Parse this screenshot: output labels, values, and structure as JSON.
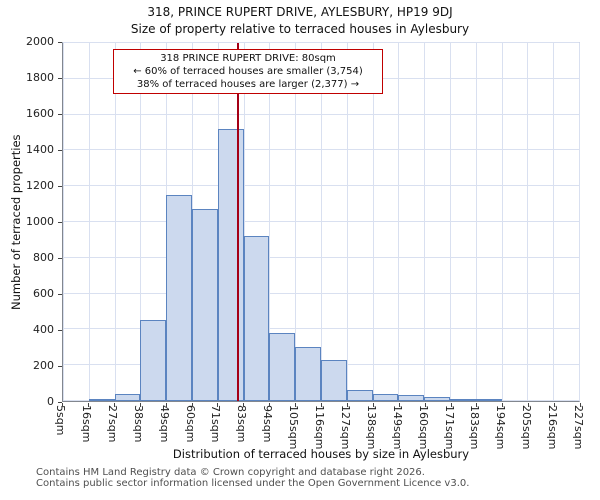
{
  "chart_data": {
    "type": "bar",
    "title": "318, PRINCE RUPERT DRIVE, AYLESBURY, HP19 9DJ",
    "subtitle": "Size of property relative to terraced houses in Aylesbury",
    "xlabel": "Distribution of terraced houses by size in Aylesbury",
    "ylabel": "Number of terraced properties",
    "bin_edges": [
      5,
      16,
      27,
      38,
      49,
      60,
      71,
      83,
      94,
      105,
      116,
      127,
      138,
      149,
      160,
      171,
      183,
      194,
      205,
      216,
      227
    ],
    "bin_labels": [
      "5sqm",
      "16sqm",
      "27sqm",
      "38sqm",
      "49sqm",
      "60sqm",
      "71sqm",
      "83sqm",
      "94sqm",
      "105sqm",
      "116sqm",
      "127sqm",
      "138sqm",
      "149sqm",
      "160sqm",
      "171sqm",
      "183sqm",
      "194sqm",
      "205sqm",
      "216sqm",
      "227sqm"
    ],
    "values": [
      0,
      10,
      40,
      450,
      1150,
      1075,
      1520,
      920,
      380,
      300,
      230,
      60,
      40,
      35,
      25,
      10,
      8,
      0,
      0,
      0
    ],
    "ylim": [
      0,
      2000
    ],
    "yticks": [
      0,
      200,
      400,
      600,
      800,
      1000,
      1200,
      1400,
      1600,
      1800,
      2000
    ],
    "marker_value": 80,
    "grid": true,
    "bar_fill": "#ccd9ee",
    "bar_stroke": "#5b84c0",
    "marker_color": "#a50016",
    "grid_color": "#d9e0f0"
  },
  "annotation": {
    "line1": "318 PRINCE RUPERT DRIVE: 80sqm",
    "line2": "← 60% of terraced houses are smaller (3,754)",
    "line3": "38% of terraced houses are larger (2,377) →"
  },
  "footer": {
    "line1": "Contains HM Land Registry data © Crown copyright and database right 2026.",
    "line2": "Contains public sector information licensed under the Open Government Licence v3.0."
  }
}
